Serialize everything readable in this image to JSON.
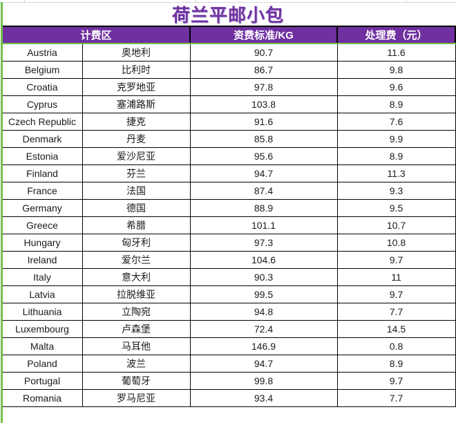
{
  "title": "荷兰平邮小包",
  "colors": {
    "header_purple": "#7030A0",
    "title_purple": "#7030A0",
    "green_line": "#72BF4B",
    "border_black": "#000000"
  },
  "table": {
    "headers": {
      "zone": "计费区",
      "rate": "资费标准/KG",
      "fee": "处理费（元）"
    },
    "rows": [
      {
        "en": "Austria",
        "zh": "奥地利",
        "rate": 90.7,
        "fee": 11.6
      },
      {
        "en": "Belgium",
        "zh": "比利时",
        "rate": 86.7,
        "fee": 9.8
      },
      {
        "en": "Croatia",
        "zh": "克罗地亚",
        "rate": 97.8,
        "fee": 9.6
      },
      {
        "en": "Cyprus",
        "zh": "塞浦路斯",
        "rate": 103.8,
        "fee": 8.9
      },
      {
        "en": "Czech Republic",
        "zh": "捷克",
        "rate": 91.6,
        "fee": 7.6
      },
      {
        "en": "Denmark",
        "zh": "丹麦",
        "rate": 85.8,
        "fee": 9.9
      },
      {
        "en": "Estonia",
        "zh": "爱沙尼亚",
        "rate": 95.6,
        "fee": 8.9
      },
      {
        "en": "Finland",
        "zh": "芬兰",
        "rate": 94.7,
        "fee": 11.3
      },
      {
        "en": "France",
        "zh": "法国",
        "rate": 87.4,
        "fee": 9.3
      },
      {
        "en": "Germany",
        "zh": "德国",
        "rate": 88.9,
        "fee": 9.5
      },
      {
        "en": "Greece",
        "zh": "希腊",
        "rate": 101.1,
        "fee": 10.7
      },
      {
        "en": "Hungary",
        "zh": "匈牙利",
        "rate": 97.3,
        "fee": 10.8
      },
      {
        "en": "Ireland",
        "zh": "爱尔兰",
        "rate": 104.6,
        "fee": 9.7
      },
      {
        "en": "Italy",
        "zh": "意大利",
        "rate": 90.3,
        "fee": 11
      },
      {
        "en": "Latvia",
        "zh": "拉脱维亚",
        "rate": 99.5,
        "fee": 9.7
      },
      {
        "en": "Lithuania",
        "zh": "立陶宛",
        "rate": 94.8,
        "fee": 7.7
      },
      {
        "en": "Luxembourg",
        "zh": "卢森堡",
        "rate": 72.4,
        "fee": 14.5
      },
      {
        "en": "Malta",
        "zh": "马耳他",
        "rate": 146.9,
        "fee": 0.8
      },
      {
        "en": "Poland",
        "zh": "波兰",
        "rate": 94.7,
        "fee": 8.9
      },
      {
        "en": "Portugal",
        "zh": "葡萄牙",
        "rate": 99.8,
        "fee": 9.7
      },
      {
        "en": "Romania",
        "zh": "罗马尼亚",
        "rate": 93.4,
        "fee": 7.7
      }
    ]
  }
}
